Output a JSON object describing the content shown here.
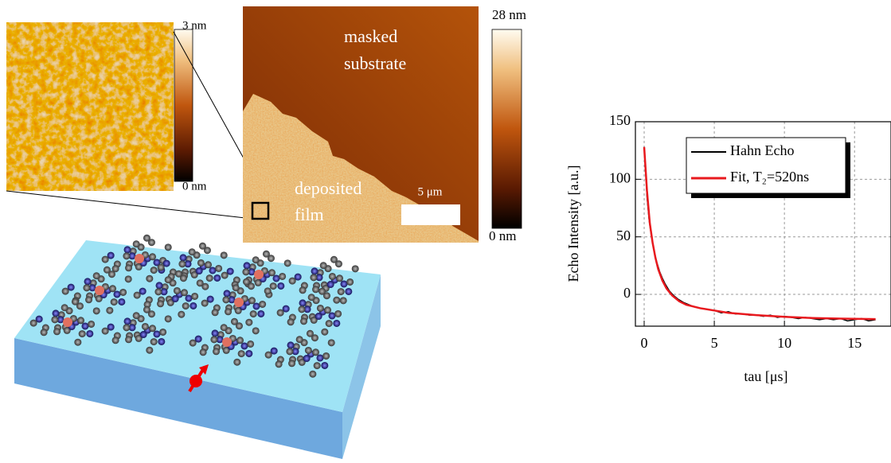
{
  "images": {
    "zoom_bar_top": "3 nm",
    "zoom_bar_bottom": "0 nm",
    "main_bar_top": "28 nm",
    "main_bar_bottom": "0 nm",
    "masked_line1": "masked",
    "masked_line2": "substrate",
    "film_line1": "deposited",
    "film_line2": "film",
    "scale_bar": "5 μm"
  },
  "chart_data": {
    "type": "line",
    "x_label": "tau [μs]",
    "y_label": "Echo Intensity [a.u.]",
    "xlim": [
      -0.625,
      17.6
    ],
    "ylim": [
      -27.6,
      150
    ],
    "xticks": [
      0,
      5,
      10,
      15
    ],
    "yticks": [
      0,
      50,
      100,
      150
    ],
    "grid": true,
    "legend": "top-right",
    "series": [
      {
        "name": "Hahn Echo",
        "color": "#000000",
        "x": [
          0,
          0.1,
          0.2,
          0.35,
          0.5,
          0.7,
          0.9,
          1.1,
          1.3,
          1.5,
          1.8,
          2.1,
          2.4,
          2.8,
          3.2,
          3.6,
          4,
          4.5,
          5,
          5.5,
          6,
          6.5,
          7,
          7.5,
          8,
          8.5,
          9,
          9.5,
          10,
          10.5,
          11,
          11.5,
          12,
          12.5,
          13,
          13.5,
          14,
          14.5,
          15,
          15.5,
          16,
          16.5
        ],
        "values": [
          128,
          110,
          85,
          65,
          52,
          38,
          28,
          20,
          14,
          9,
          3,
          -1,
          -4,
          -7,
          -9,
          -11,
          -12,
          -13,
          -14,
          -16,
          -15,
          -17,
          -17,
          -18,
          -18,
          -19,
          -18,
          -20,
          -19,
          -20,
          -21,
          -20,
          -21,
          -22,
          -21,
          -22,
          -21,
          -23,
          -22,
          -21,
          -23,
          -22
        ]
      },
      {
        "name": "Fit, T₂=520ns",
        "color": "#e8191e",
        "x": [
          0,
          0.2,
          0.4,
          0.6,
          0.8,
          1,
          1.3,
          1.6,
          2,
          2.5,
          3,
          4,
          5,
          6,
          8,
          10,
          12,
          14,
          16.5
        ],
        "values": [
          128,
          90,
          62,
          45,
          32,
          22,
          12,
          5,
          -1,
          -6,
          -9,
          -12,
          -14,
          -16,
          -18,
          -19.5,
          -20.5,
          -21,
          -21.5
        ]
      }
    ]
  }
}
